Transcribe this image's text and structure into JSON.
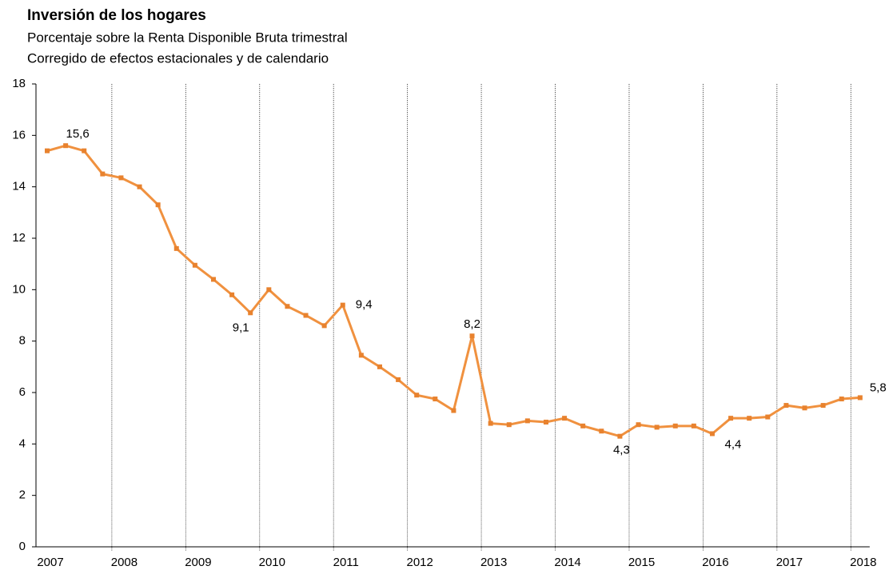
{
  "chart_data": {
    "type": "line",
    "title": "Inversión de los hogares",
    "subtitle": [
      "Porcentaje sobre la Renta Disponible Bruta trimestral",
      "Corregido de efectos estacionales y de calendario"
    ],
    "categories": [
      "2007",
      null,
      null,
      null,
      "2008",
      null,
      null,
      null,
      "2009",
      null,
      null,
      null,
      "2010",
      null,
      null,
      null,
      "2011",
      null,
      null,
      null,
      "2012",
      null,
      null,
      null,
      "2013",
      null,
      null,
      null,
      "2014",
      null,
      null,
      null,
      "2015",
      null,
      null,
      null,
      "2016",
      null,
      null,
      null,
      "2017",
      null,
      null,
      null,
      "2018"
    ],
    "series": [
      {
        "color": "#f0913f",
        "values": [
          15.4,
          15.6,
          15.4,
          14.5,
          14.35,
          14.0,
          13.3,
          11.6,
          10.95,
          10.4,
          9.8,
          9.1,
          10.0,
          9.35,
          9.0,
          8.6,
          9.4,
          7.45,
          7.0,
          6.5,
          5.9,
          5.75,
          5.3,
          8.2,
          4.8,
          4.75,
          4.9,
          4.85,
          5.0,
          4.7,
          4.5,
          4.3,
          4.75,
          4.65,
          4.7,
          4.7,
          4.4,
          5.0,
          5.0,
          5.05,
          5.5,
          5.4,
          5.5,
          5.75,
          5.8
        ],
        "value_labels": [
          null,
          "15,6",
          null,
          null,
          null,
          null,
          null,
          null,
          null,
          null,
          null,
          "9,1",
          null,
          null,
          null,
          null,
          "9,4",
          null,
          null,
          null,
          null,
          null,
          null,
          "8,2",
          null,
          null,
          null,
          null,
          null,
          null,
          null,
          "4,3",
          null,
          null,
          null,
          null,
          "4,4",
          null,
          null,
          null,
          null,
          null,
          null,
          null,
          "5,8"
        ]
      }
    ],
    "ylim": [
      0,
      18
    ],
    "yticks": [
      0,
      2,
      4,
      6,
      8,
      10,
      12,
      14,
      16,
      18
    ]
  }
}
